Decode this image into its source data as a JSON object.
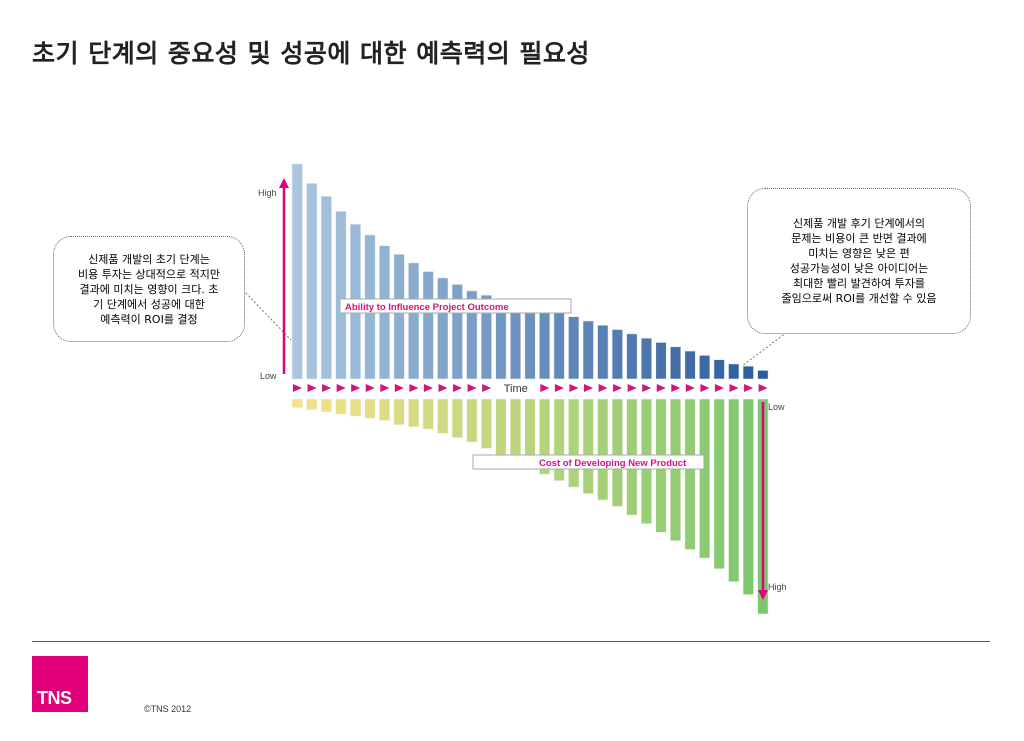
{
  "page": {
    "title": "초기 단계의 중요성 및 성공에 대한 예측력의 필요성",
    "copyright": "©TNS 2012",
    "logo_text": "TNS"
  },
  "callouts": {
    "left": [
      "신제품 개발의 초기 단계는",
      "비용 투자는 상대적으로 적지만",
      "결과에 미치는 영향이 크다.  초",
      "기 단계에서 성공에 대한",
      "예측력이 ROI를 결정"
    ],
    "right": [
      "신제품 개발 후기 단계에서의",
      "문제는 비용이 큰 반면 결과에",
      "미치는 영향은 낮은 편",
      "성공가능성이 낮은 아이디어는",
      "최대한 빨리 발견하여 투자를",
      "줄임으로써 ROI를 개선할 수 있음"
    ]
  },
  "chart_data": {
    "type": "bar",
    "upper": {
      "name": "Ability to Influence Project Outcome",
      "axis_high": "High",
      "axis_low": "Low",
      "values": [
        100,
        91,
        85,
        78,
        72,
        67,
        62,
        58,
        54,
        50,
        47,
        44,
        41,
        39,
        37,
        35,
        34,
        33,
        31,
        29,
        27,
        25,
        23,
        21,
        19,
        17,
        15,
        13,
        11,
        9,
        7,
        6,
        4
      ]
    },
    "lower": {
      "name": "Cost of Developing New Product",
      "axis_low": "Low",
      "axis_high": "High",
      "values": [
        4,
        5,
        6,
        7,
        8,
        9,
        10,
        12,
        13,
        14,
        16,
        18,
        20,
        23,
        26,
        29,
        32,
        35,
        38,
        41,
        44,
        47,
        50,
        54,
        58,
        62,
        66,
        70,
        74,
        79,
        85,
        91,
        100
      ]
    },
    "time_label": "Time",
    "colors": {
      "upper_start": "#a9c6de",
      "upper_end": "#2c5a9c",
      "lower_start": "#f4e28a",
      "lower_end": "#7cc76f",
      "arrow": "#d6127f",
      "axis_arrow": "#e2007a"
    }
  }
}
